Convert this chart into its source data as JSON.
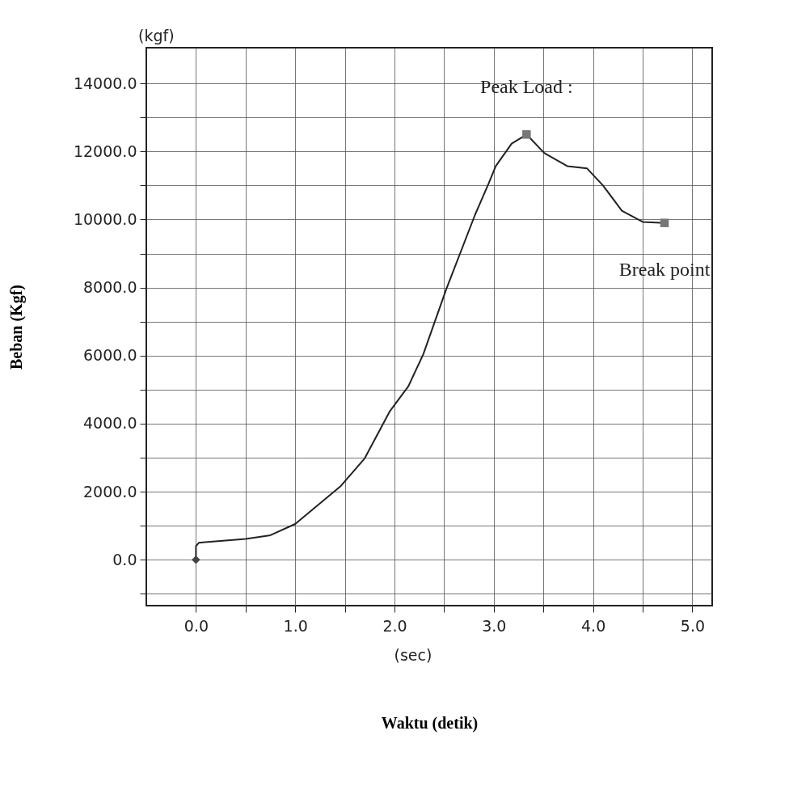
{
  "chart_data": {
    "type": "line",
    "xlabel": "Waktu (detik)",
    "ylabel": "Beban (Kgf)",
    "xlim": [
      -0.5,
      5.2
    ],
    "ylim": [
      -1350,
      15050
    ],
    "xticks": [
      {
        "value": 0,
        "label": "0.0"
      },
      {
        "value": 0.5,
        "label": null
      },
      {
        "value": 1,
        "label": "1.0"
      },
      {
        "value": 1.5,
        "label": null
      },
      {
        "value": 2,
        "label": "2.0"
      },
      {
        "value": 2.5,
        "label": null
      },
      {
        "value": 3,
        "label": "3.0"
      },
      {
        "value": 3.5,
        "label": null
      },
      {
        "value": 4,
        "label": "4.0"
      },
      {
        "value": 4.5,
        "label": null
      },
      {
        "value": 5,
        "label": "5.0"
      }
    ],
    "yticks": [
      {
        "value": -1000,
        "label": null
      },
      {
        "value": 0,
        "label": "0.0"
      },
      {
        "value": 1000,
        "label": null
      },
      {
        "value": 2000,
        "label": "2000.0"
      },
      {
        "value": 3000,
        "label": null
      },
      {
        "value": 4000,
        "label": "4000.0"
      },
      {
        "value": 5000,
        "label": null
      },
      {
        "value": 6000,
        "label": "6000.0"
      },
      {
        "value": 7000,
        "label": null
      },
      {
        "value": 8000,
        "label": "8000.0"
      },
      {
        "value": 9000,
        "label": null
      },
      {
        "value": 10000,
        "label": "10000.0"
      },
      {
        "value": 11000,
        "label": null
      },
      {
        "value": 12000,
        "label": "12000.0"
      },
      {
        "value": 13000,
        "label": null
      },
      {
        "value": 14000,
        "label": "14000.0"
      }
    ],
    "grid": true,
    "series": [
      {
        "color": "#222222",
        "marker": "none",
        "x": [
          0,
          0,
          0.03,
          0.5,
          0.75,
          1.0,
          1.46,
          1.7,
          1.95,
          2.14,
          2.29,
          2.52,
          2.81,
          2.95,
          3.02,
          3.18,
          3.33,
          3.51,
          3.74,
          3.94,
          4.1,
          4.29,
          4.5,
          4.72
        ],
        "values": [
          0,
          400,
          500,
          610,
          720,
          1050,
          2170,
          2980,
          4350,
          5100,
          6040,
          7940,
          10130,
          11070,
          11570,
          12230,
          12500,
          11950,
          11570,
          11500,
          11000,
          10260,
          9930,
          9900
        ]
      },
      {
        "type": "scatter",
        "color": "#444444",
        "marker": "diamond",
        "x": [
          0
        ],
        "values": [
          0
        ]
      },
      {
        "type": "scatter",
        "color": "#777777",
        "marker": "square",
        "x": [
          3.33,
          4.72
        ],
        "values": [
          12500,
          9900
        ]
      }
    ],
    "annotations": [
      "(kgf)",
      "(sec)",
      {
        "text": "Peak Load :",
        "x": 3.33,
        "y": 12500
      },
      {
        "text": "Break point",
        "x": 4.72,
        "y": 9900
      }
    ]
  }
}
